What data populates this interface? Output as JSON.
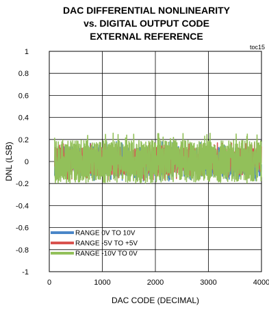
{
  "chart_data": {
    "type": "line",
    "title": [
      "DAC DIFFERENTIAL NONLINEARITY",
      "vs. DIGITAL OUTPUT CODE",
      "EXTERNAL REFERENCE"
    ],
    "annotation": "toc15",
    "xlabel": "DAC  CODE (DECIMAL)",
    "ylabel": "DNL (LSB)",
    "xlim": [
      0,
      4000
    ],
    "ylim": [
      -1,
      1
    ],
    "x_ticks": [
      0,
      1000,
      2000,
      3000,
      4000
    ],
    "x_tick_labels": [
      "0",
      "1000",
      "2000",
      "3000",
      "4000"
    ],
    "y_ticks": [
      1,
      0.8,
      0.6,
      0.4,
      0.2,
      0,
      -0.2,
      -0.4,
      -0.6,
      -0.8,
      -1
    ],
    "y_tick_labels": [
      "1",
      "0.8",
      "0.6",
      "0.4",
      "0.2",
      "0",
      "-0.2",
      "-0.4",
      "-0.6",
      "-0.8",
      "-1"
    ],
    "grid": true,
    "legend_position": "bottom-left",
    "data_x_range": [
      100,
      4000
    ],
    "series": [
      {
        "name": "RANGE 0V TO 10V",
        "color": "#4a86c8",
        "dnl_min": -0.18,
        "dnl_max": 0.18
      },
      {
        "name": "RANGE -5V TO +5V",
        "color": "#d9534f",
        "dnl_min": -0.17,
        "dnl_max": 0.17
      },
      {
        "name": "RANGE -10V TO 0V",
        "color": "#92c05a",
        "dnl_min": -0.2,
        "dnl_max": 0.26
      }
    ]
  }
}
